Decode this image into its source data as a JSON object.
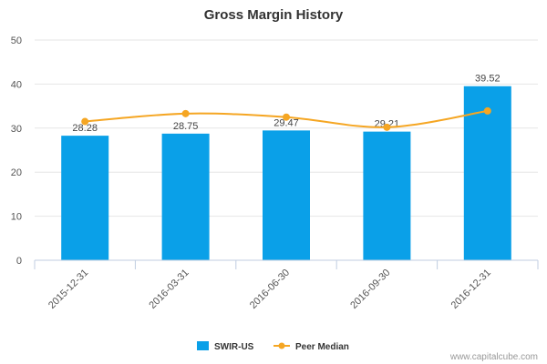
{
  "chart_data": {
    "type": "bar",
    "title": "Gross Margin History",
    "categories": [
      "2015-12-31",
      "2016-03-31",
      "2016-06-30",
      "2016-09-30",
      "2016-12-31"
    ],
    "series": [
      {
        "name": "SWIR-US",
        "kind": "bar",
        "color": "#0aa0e8",
        "values": [
          28.28,
          28.75,
          29.47,
          29.21,
          39.52
        ],
        "labels": [
          "28.28",
          "28.75",
          "29.47",
          "29.21",
          "39.52"
        ]
      },
      {
        "name": "Peer Median",
        "kind": "line",
        "color": "#f5a623",
        "values": [
          31.5,
          33.3,
          32.5,
          30.2,
          33.9
        ]
      }
    ],
    "ylim": [
      0,
      50
    ],
    "yticks": [
      "0",
      "10",
      "20",
      "30",
      "40",
      "50"
    ],
    "xlabel": "",
    "ylabel": "",
    "legend_position": "bottom"
  },
  "credit": "www.capitalcube.com"
}
